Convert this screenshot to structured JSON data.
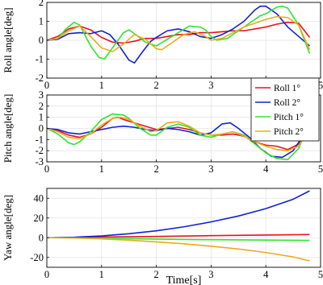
{
  "colors": {
    "roll1": "#e8121e",
    "roll2": "#1020d8",
    "pitch1": "#2ee62a",
    "pitch2": "#f0a81c"
  },
  "chart_data": [
    {
      "type": "line",
      "ylabel": "Roll angle[deg]",
      "xlim": [
        0,
        5
      ],
      "ylim": [
        -2,
        2
      ],
      "xticks": [
        0,
        1,
        2,
        3,
        4,
        5
      ],
      "yticks": [
        -2,
        -1,
        0,
        1,
        2
      ],
      "grid": true,
      "series": [
        {
          "key": "roll1",
          "points": [
            [
              0,
              0
            ],
            [
              0.2,
              0.2
            ],
            [
              0.4,
              0.6
            ],
            [
              0.6,
              0.75
            ],
            [
              0.8,
              0.55
            ],
            [
              1.0,
              0.15
            ],
            [
              1.2,
              -0.1
            ],
            [
              1.4,
              -0.15
            ],
            [
              1.6,
              -0.05
            ],
            [
              1.8,
              0.1
            ],
            [
              2.0,
              0.1
            ],
            [
              2.2,
              0.2
            ],
            [
              2.4,
              0.3
            ],
            [
              2.6,
              0.3
            ],
            [
              2.8,
              0.4
            ],
            [
              3.0,
              0.4
            ],
            [
              3.2,
              0.45
            ],
            [
              3.4,
              0.5
            ],
            [
              3.6,
              0.5
            ],
            [
              3.8,
              0.6
            ],
            [
              4.0,
              0.7
            ],
            [
              4.2,
              0.85
            ],
            [
              4.4,
              0.95
            ],
            [
              4.6,
              0.9
            ],
            [
              4.8,
              0.15
            ]
          ]
        },
        {
          "key": "roll2",
          "points": [
            [
              0,
              0
            ],
            [
              0.2,
              0.05
            ],
            [
              0.4,
              0.35
            ],
            [
              0.6,
              0.4
            ],
            [
              0.8,
              0.35
            ],
            [
              1.0,
              0.5
            ],
            [
              1.15,
              0.3
            ],
            [
              1.3,
              -0.2
            ],
            [
              1.5,
              -1.05
            ],
            [
              1.6,
              -1.2
            ],
            [
              1.75,
              -0.6
            ],
            [
              1.9,
              -0.05
            ],
            [
              2.0,
              0.15
            ],
            [
              2.2,
              0.5
            ],
            [
              2.4,
              0.6
            ],
            [
              2.6,
              0.45
            ],
            [
              2.8,
              0.2
            ],
            [
              3.0,
              0.1
            ],
            [
              3.2,
              0.3
            ],
            [
              3.4,
              0.6
            ],
            [
              3.6,
              1.0
            ],
            [
              3.8,
              1.6
            ],
            [
              3.9,
              1.8
            ],
            [
              4.0,
              1.8
            ],
            [
              4.2,
              1.4
            ],
            [
              4.4,
              0.7
            ],
            [
              4.6,
              0.2
            ],
            [
              4.8,
              -0.3
            ]
          ]
        },
        {
          "key": "pitch1",
          "points": [
            [
              0,
              0
            ],
            [
              0.2,
              0.1
            ],
            [
              0.35,
              0.6
            ],
            [
              0.5,
              0.95
            ],
            [
              0.6,
              0.8
            ],
            [
              0.8,
              -0.3
            ],
            [
              0.95,
              -0.9
            ],
            [
              1.05,
              -1.0
            ],
            [
              1.2,
              -0.4
            ],
            [
              1.4,
              0.4
            ],
            [
              1.5,
              0.55
            ],
            [
              1.6,
              0.35
            ],
            [
              1.8,
              -0.1
            ],
            [
              2.0,
              -0.3
            ],
            [
              2.2,
              0.05
            ],
            [
              2.4,
              0.4
            ],
            [
              2.6,
              0.75
            ],
            [
              2.8,
              0.7
            ],
            [
              2.9,
              0.55
            ],
            [
              3.0,
              0.2
            ],
            [
              3.1,
              0.0
            ],
            [
              3.3,
              0.1
            ],
            [
              3.5,
              0.5
            ],
            [
              3.7,
              0.9
            ],
            [
              3.9,
              1.3
            ],
            [
              4.0,
              1.4
            ],
            [
              4.2,
              1.75
            ],
            [
              4.3,
              1.8
            ],
            [
              4.4,
              1.7
            ],
            [
              4.6,
              0.8
            ],
            [
              4.8,
              -0.7
            ]
          ]
        },
        {
          "key": "pitch2",
          "points": [
            [
              0,
              0
            ],
            [
              0.2,
              0.1
            ],
            [
              0.4,
              0.5
            ],
            [
              0.6,
              0.75
            ],
            [
              0.8,
              0.2
            ],
            [
              1.0,
              -0.4
            ],
            [
              1.2,
              -0.6
            ],
            [
              1.4,
              -0.2
            ],
            [
              1.6,
              0.3
            ],
            [
              1.8,
              0.05
            ],
            [
              2.0,
              -0.45
            ],
            [
              2.1,
              -0.5
            ],
            [
              2.3,
              -0.1
            ],
            [
              2.5,
              0.3
            ],
            [
              2.7,
              0.45
            ],
            [
              2.9,
              0.2
            ],
            [
              3.0,
              0.0
            ],
            [
              3.2,
              0.1
            ],
            [
              3.4,
              0.4
            ],
            [
              3.6,
              0.7
            ],
            [
              3.8,
              0.9
            ],
            [
              4.0,
              1.1
            ],
            [
              4.2,
              1.25
            ],
            [
              4.4,
              1.2
            ],
            [
              4.6,
              0.8
            ],
            [
              4.8,
              -0.5
            ]
          ]
        }
      ]
    },
    {
      "type": "line",
      "ylabel": "Pitch angle[deg]",
      "xlim": [
        0,
        5
      ],
      "ylim": [
        -3,
        3
      ],
      "xticks": [
        0,
        1,
        2,
        3,
        4,
        5
      ],
      "yticks": [
        -3,
        -2,
        -1,
        0,
        1,
        2,
        3
      ],
      "grid": true,
      "legend": {
        "placement": "top-right",
        "entries": [
          {
            "key": "roll1",
            "label": "Roll 1°"
          },
          {
            "key": "roll2",
            "label": "Roll 2°"
          },
          {
            "key": "pitch1",
            "label": "Pitch 1°"
          },
          {
            "key": "pitch2",
            "label": "Pitch 2°"
          }
        ]
      },
      "series": [
        {
          "key": "roll1",
          "points": [
            [
              0,
              0
            ],
            [
              0.2,
              -0.2
            ],
            [
              0.4,
              -0.6
            ],
            [
              0.6,
              -0.8
            ],
            [
              0.8,
              -0.5
            ],
            [
              1.0,
              0.1
            ],
            [
              1.2,
              0.9
            ],
            [
              1.3,
              1.0
            ],
            [
              1.4,
              0.8
            ],
            [
              1.6,
              0.5
            ],
            [
              1.8,
              0.2
            ],
            [
              2.0,
              -0.1
            ],
            [
              2.2,
              0.0
            ],
            [
              2.4,
              0.1
            ],
            [
              2.6,
              -0.1
            ],
            [
              2.8,
              -0.4
            ],
            [
              3.0,
              -0.6
            ],
            [
              3.2,
              -0.6
            ],
            [
              3.4,
              -0.5
            ],
            [
              3.6,
              -0.7
            ],
            [
              3.8,
              -1.2
            ],
            [
              4.0,
              -1.5
            ],
            [
              4.2,
              -1.6
            ],
            [
              4.4,
              -1.9
            ],
            [
              4.6,
              -1.4
            ],
            [
              4.8,
              0.2
            ]
          ]
        },
        {
          "key": "roll2",
          "points": [
            [
              0,
              0
            ],
            [
              0.2,
              -0.1
            ],
            [
              0.4,
              -0.4
            ],
            [
              0.6,
              -0.5
            ],
            [
              0.8,
              -0.3
            ],
            [
              1.0,
              -0.1
            ],
            [
              1.2,
              0.1
            ],
            [
              1.4,
              0.2
            ],
            [
              1.6,
              0.1
            ],
            [
              1.8,
              -0.1
            ],
            [
              2.0,
              -0.2
            ],
            [
              2.2,
              0.0
            ],
            [
              2.4,
              -0.1
            ],
            [
              2.6,
              -0.3
            ],
            [
              2.8,
              -0.6
            ],
            [
              3.0,
              -0.4
            ],
            [
              3.2,
              0.4
            ],
            [
              3.35,
              0.5
            ],
            [
              3.5,
              0.0
            ],
            [
              3.7,
              -0.8
            ],
            [
              3.9,
              -1.8
            ],
            [
              4.1,
              -2.5
            ],
            [
              4.3,
              -2.6
            ],
            [
              4.5,
              -2.0
            ],
            [
              4.7,
              -0.5
            ],
            [
              4.8,
              0.5
            ]
          ]
        },
        {
          "key": "pitch1",
          "points": [
            [
              0,
              0
            ],
            [
              0.2,
              -0.5
            ],
            [
              0.4,
              -1.3
            ],
            [
              0.5,
              -1.45
            ],
            [
              0.6,
              -1.2
            ],
            [
              0.8,
              -0.3
            ],
            [
              1.0,
              0.8
            ],
            [
              1.2,
              1.3
            ],
            [
              1.4,
              1.2
            ],
            [
              1.5,
              0.9
            ],
            [
              1.7,
              0.0
            ],
            [
              1.9,
              -0.6
            ],
            [
              2.0,
              -0.6
            ],
            [
              2.2,
              0.1
            ],
            [
              2.4,
              0.4
            ],
            [
              2.6,
              0.1
            ],
            [
              2.8,
              -0.6
            ],
            [
              3.0,
              -0.8
            ],
            [
              3.2,
              -0.5
            ],
            [
              3.4,
              -0.3
            ],
            [
              3.6,
              -0.6
            ],
            [
              3.8,
              -1.4
            ],
            [
              4.0,
              -2.2
            ],
            [
              4.2,
              -2.7
            ],
            [
              4.4,
              -2.8
            ],
            [
              4.6,
              -1.8
            ],
            [
              4.8,
              0.6
            ]
          ]
        },
        {
          "key": "pitch2",
          "points": [
            [
              0,
              0
            ],
            [
              0.2,
              -0.3
            ],
            [
              0.4,
              -0.8
            ],
            [
              0.6,
              -0.9
            ],
            [
              0.8,
              -0.5
            ],
            [
              1.0,
              0.3
            ],
            [
              1.2,
              0.9
            ],
            [
              1.35,
              1.0
            ],
            [
              1.5,
              0.8
            ],
            [
              1.7,
              0.2
            ],
            [
              1.9,
              -0.3
            ],
            [
              2.0,
              -0.2
            ],
            [
              2.2,
              0.5
            ],
            [
              2.4,
              0.6
            ],
            [
              2.6,
              0.2
            ],
            [
              2.8,
              -0.4
            ],
            [
              3.0,
              -0.6
            ],
            [
              3.2,
              -0.5
            ],
            [
              3.4,
              -0.3
            ],
            [
              3.6,
              -0.7
            ],
            [
              3.8,
              -1.2
            ],
            [
              4.0,
              -1.6
            ],
            [
              4.2,
              -1.9
            ],
            [
              4.4,
              -2.0
            ],
            [
              4.6,
              -1.6
            ],
            [
              4.8,
              0.3
            ]
          ]
        }
      ]
    },
    {
      "type": "line",
      "ylabel": "Yaw angle[deg]",
      "xlabel": "Time[s]",
      "xlim": [
        0,
        5
      ],
      "ylim": [
        -30,
        50
      ],
      "xticks": [
        0,
        1,
        2,
        3,
        4,
        5
      ],
      "yticks": [
        -20,
        0,
        20,
        40
      ],
      "grid": true,
      "series": [
        {
          "key": "roll1",
          "points": [
            [
              0,
              0
            ],
            [
              0.5,
              0.3
            ],
            [
              1.0,
              0.7
            ],
            [
              1.5,
              1.0
            ],
            [
              2.0,
              1.3
            ],
            [
              2.5,
              1.7
            ],
            [
              3.0,
              2.1
            ],
            [
              3.5,
              2.4
            ],
            [
              4.0,
              2.7
            ],
            [
              4.5,
              3.0
            ],
            [
              4.8,
              3.2
            ]
          ]
        },
        {
          "key": "roll2",
          "points": [
            [
              0,
              0
            ],
            [
              0.5,
              0.5
            ],
            [
              1.0,
              1.8
            ],
            [
              1.5,
              4.0
            ],
            [
              2.0,
              7.0
            ],
            [
              2.5,
              11.0
            ],
            [
              3.0,
              16.0
            ],
            [
              3.5,
              22.0
            ],
            [
              4.0,
              29.5
            ],
            [
              4.5,
              39.0
            ],
            [
              4.8,
              47.5
            ]
          ]
        },
        {
          "key": "pitch1",
          "points": [
            [
              0,
              0
            ],
            [
              0.5,
              -0.2
            ],
            [
              1.0,
              -0.6
            ],
            [
              1.5,
              -1.0
            ],
            [
              2.0,
              -1.4
            ],
            [
              2.5,
              -1.8
            ],
            [
              3.0,
              -2.0
            ],
            [
              3.5,
              -2.2
            ],
            [
              4.0,
              -2.4
            ],
            [
              4.5,
              -2.6
            ],
            [
              4.8,
              -2.7
            ]
          ]
        },
        {
          "key": "pitch2",
          "points": [
            [
              0,
              0
            ],
            [
              0.5,
              -0.3
            ],
            [
              1.0,
              -1.2
            ],
            [
              1.5,
              -2.5
            ],
            [
              2.0,
              -4.2
            ],
            [
              2.5,
              -6.2
            ],
            [
              3.0,
              -8.6
            ],
            [
              3.5,
              -11.5
            ],
            [
              4.0,
              -15.0
            ],
            [
              4.5,
              -19.5
            ],
            [
              4.8,
              -23.5
            ]
          ]
        }
      ]
    }
  ]
}
